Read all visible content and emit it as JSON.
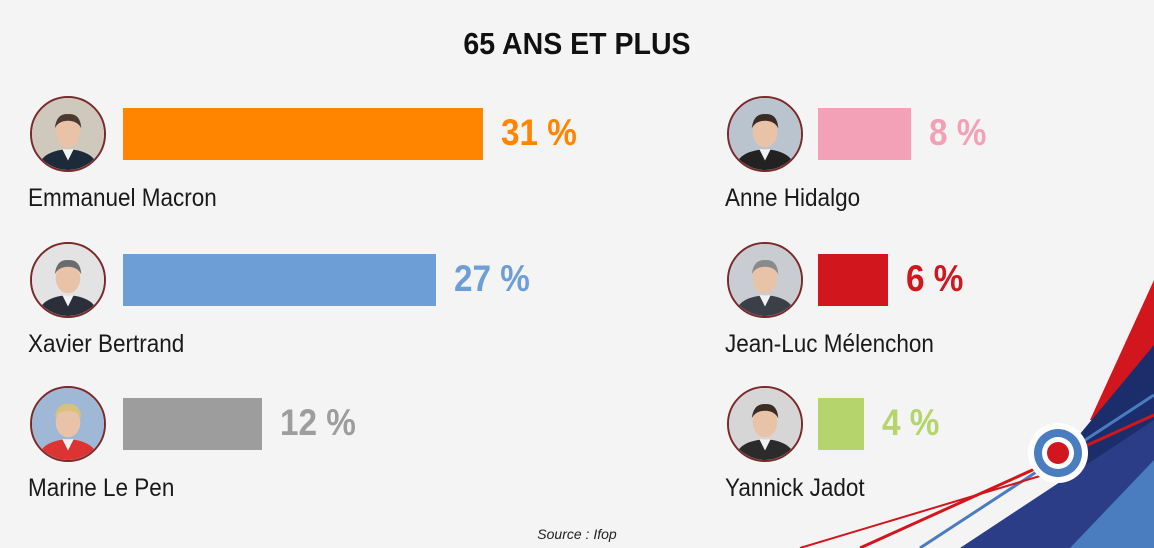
{
  "chart_data": {
    "type": "bar",
    "title": "65 ANS ET PLUS",
    "unit": "%",
    "categories": [
      "Emmanuel Macron",
      "Xavier Bertrand",
      "Marine Le Pen",
      "Anne Hidalgo",
      "Jean-Luc Mélenchon",
      "Yannick Jadot"
    ],
    "values": [
      31,
      27,
      12,
      8,
      6,
      4
    ],
    "value_labels": [
      "31 %",
      "27 %",
      "12 %",
      "8 %",
      "6 %",
      "4 %"
    ],
    "colors": [
      "#ff8400",
      "#6d9ed6",
      "#9d9d9d",
      "#f3a1b6",
      "#d2161e",
      "#b5d46b"
    ],
    "columns": 2
  },
  "source": "Source :  Ifop",
  "icons": [
    "candidate-portrait-icon",
    "roundel-icon"
  ]
}
